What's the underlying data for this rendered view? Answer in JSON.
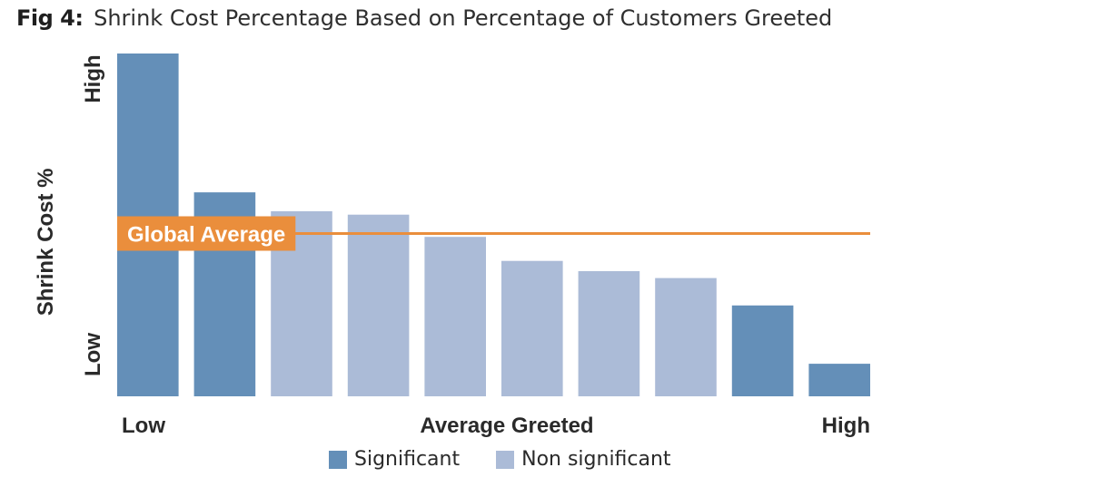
{
  "title": {
    "prefix": "Fig 4:",
    "text": "Shrink Cost Percentage Based on Percentage of Customers Greeted"
  },
  "colors": {
    "significant": "#648fb8",
    "non_significant": "#abbbd7",
    "global_average": "#ea8e3c"
  },
  "chart_data": {
    "type": "bar",
    "title": "Shrink Cost Percentage Based on Percentage of Customers Greeted",
    "xlabel": "Average Greeted",
    "ylabel": "Shrink Cost %",
    "x_tick_labels": {
      "low": "Low",
      "high": "High"
    },
    "y_tick_labels": {
      "low": "Low",
      "high": "High"
    },
    "ylim": [
      0,
      100
    ],
    "grid": false,
    "legend_position": "bottom",
    "values": [
      100,
      59.5,
      54,
      53,
      46.5,
      39.5,
      36.5,
      34.5,
      26.5,
      9.5
    ],
    "significance": [
      "significant",
      "significant",
      "non_significant",
      "non_significant",
      "non_significant",
      "non_significant",
      "non_significant",
      "non_significant",
      "significant",
      "significant"
    ],
    "series": [
      {
        "name": "Significant",
        "key": "significant"
      },
      {
        "name": "Non significant",
        "key": "non_significant"
      }
    ],
    "reference_line": {
      "label": "Global Average",
      "value": 47.5
    }
  }
}
